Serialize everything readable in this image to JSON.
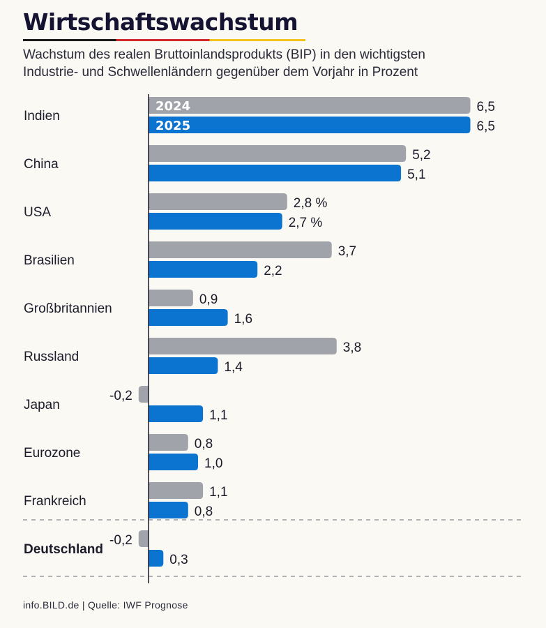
{
  "title": "Wirtschaftswachstum",
  "subtitle_lines": [
    "Wachstum des realen Bruttoinlandsprodukts (BIP) in den wichtigsten",
    "Industrie- und Schwellenländern gegenüber dem Vorjahr in Prozent"
  ],
  "footer": "info.BILD.de | Quelle: IWF Prognose",
  "colors": {
    "series_2024": "#a0a3aa",
    "series_2025": "#0b73d0",
    "text": "#1b1b2a",
    "background": "#fbf9f4"
  },
  "chart_data": {
    "type": "bar",
    "orientation": "horizontal",
    "categories": [
      "Indien",
      "China",
      "USA",
      "Brasilien",
      "Großbritannien",
      "Russland",
      "Japan",
      "Eurozone",
      "Frankreich",
      "Deutschland"
    ],
    "highlighted_category": "Deutschland",
    "series": [
      {
        "name": "2024",
        "values": [
          6.5,
          5.2,
          2.8,
          3.7,
          0.9,
          3.8,
          -0.2,
          0.8,
          1.1,
          -0.2
        ],
        "labels": [
          "6,5",
          "5,2",
          "2,8 %",
          "3,7",
          "0,9",
          "3,8",
          "-0,2",
          "0,8",
          "1,1",
          "-0,2"
        ]
      },
      {
        "name": "2025",
        "values": [
          6.5,
          5.1,
          2.7,
          2.2,
          1.6,
          1.4,
          1.1,
          1.0,
          0.8,
          0.3
        ],
        "labels": [
          "6,5",
          "5,1",
          "2,7 %",
          "2,2",
          "1,6",
          "1,4",
          "1,1",
          "1,0",
          "0,8",
          "0,3"
        ]
      }
    ],
    "xlim": [
      -0.2,
      6.5
    ],
    "grid": false,
    "legend": "inside first bars"
  }
}
